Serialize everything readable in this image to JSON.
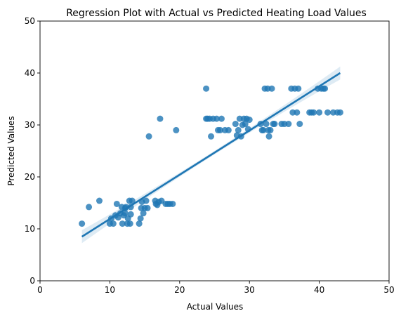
{
  "chart_data": {
    "type": "scatter",
    "title": "Regression Plot with Actual vs Predicted Heating Load Values",
    "xlabel": "Actual Values",
    "ylabel": "Predicted Values",
    "xlim": [
      0,
      50
    ],
    "ylim": [
      0,
      50
    ],
    "xticks": [
      0,
      10,
      20,
      30,
      40,
      50
    ],
    "yticks": [
      0,
      10,
      20,
      30,
      40,
      50
    ],
    "grid": false,
    "legend": "none",
    "point_color": "#1f77b4",
    "line_color": "#1f77b4",
    "points": [
      [
        6.0,
        11.0
      ],
      [
        7.0,
        14.2
      ],
      [
        8.5,
        15.4
      ],
      [
        10.0,
        11.0
      ],
      [
        10.2,
        12.0
      ],
      [
        10.5,
        11.0
      ],
      [
        10.8,
        12.6
      ],
      [
        11.0,
        14.8
      ],
      [
        11.2,
        12.2
      ],
      [
        11.5,
        13.0
      ],
      [
        11.7,
        14.2
      ],
      [
        11.8,
        11.0
      ],
      [
        12.0,
        12.6
      ],
      [
        12.2,
        13.0
      ],
      [
        12.3,
        14.2
      ],
      [
        12.5,
        11.0
      ],
      [
        12.6,
        12.0
      ],
      [
        12.8,
        15.4
      ],
      [
        13.0,
        14.2
      ],
      [
        13.2,
        15.4
      ],
      [
        13.0,
        12.8
      ],
      [
        12.2,
        14.0
      ],
      [
        12.9,
        11.0
      ],
      [
        14.2,
        11.0
      ],
      [
        14.4,
        12.0
      ],
      [
        14.5,
        14.0
      ],
      [
        14.6,
        15.2
      ],
      [
        14.8,
        13.0
      ],
      [
        15.0,
        14.0
      ],
      [
        15.2,
        15.4
      ],
      [
        15.4,
        14.0
      ],
      [
        15.6,
        27.8
      ],
      [
        16.5,
        15.4
      ],
      [
        16.6,
        14.8
      ],
      [
        16.8,
        14.6
      ],
      [
        17.0,
        15.2
      ],
      [
        17.2,
        31.2
      ],
      [
        17.4,
        15.4
      ],
      [
        18.0,
        14.8
      ],
      [
        18.3,
        14.8
      ],
      [
        18.6,
        14.8
      ],
      [
        19.0,
        14.8
      ],
      [
        19.5,
        29.0
      ],
      [
        23.8,
        37.0
      ],
      [
        23.8,
        31.2
      ],
      [
        24.0,
        31.2
      ],
      [
        24.3,
        31.2
      ],
      [
        24.5,
        27.8
      ],
      [
        24.8,
        31.2
      ],
      [
        25.3,
        31.2
      ],
      [
        25.5,
        29.0
      ],
      [
        25.8,
        29.0
      ],
      [
        26.0,
        31.2
      ],
      [
        26.5,
        29.0
      ],
      [
        27.0,
        29.0
      ],
      [
        28.0,
        30.2
      ],
      [
        28.2,
        28.0
      ],
      [
        28.4,
        29.0
      ],
      [
        28.6,
        31.2
      ],
      [
        28.8,
        27.8
      ],
      [
        29.0,
        30.0
      ],
      [
        29.2,
        31.2
      ],
      [
        29.4,
        30.2
      ],
      [
        29.6,
        31.2
      ],
      [
        29.8,
        29.2
      ],
      [
        30.0,
        31.0
      ],
      [
        31.6,
        30.2
      ],
      [
        31.8,
        29.0
      ],
      [
        32.0,
        29.0
      ],
      [
        32.2,
        37.0
      ],
      [
        32.4,
        30.2
      ],
      [
        32.6,
        37.0
      ],
      [
        32.7,
        29.0
      ],
      [
        32.8,
        27.8
      ],
      [
        33.0,
        29.0
      ],
      [
        33.2,
        37.0
      ],
      [
        33.4,
        30.2
      ],
      [
        33.6,
        30.2
      ],
      [
        34.6,
        30.2
      ],
      [
        35.0,
        30.2
      ],
      [
        35.6,
        30.2
      ],
      [
        36.0,
        37.0
      ],
      [
        36.2,
        32.4
      ],
      [
        36.5,
        37.0
      ],
      [
        36.8,
        32.4
      ],
      [
        37.0,
        37.0
      ],
      [
        37.2,
        30.2
      ],
      [
        38.6,
        32.4
      ],
      [
        38.9,
        32.4
      ],
      [
        39.2,
        32.4
      ],
      [
        39.8,
        37.0
      ],
      [
        40.0,
        32.4
      ],
      [
        40.3,
        37.0
      ],
      [
        40.6,
        37.0
      ],
      [
        40.8,
        37.0
      ],
      [
        41.2,
        32.4
      ],
      [
        42.0,
        32.4
      ],
      [
        42.6,
        32.4
      ],
      [
        43.0,
        32.4
      ]
    ],
    "regression_line": {
      "x": [
        6.0,
        43.0
      ],
      "y": [
        8.5,
        40.0
      ]
    }
  }
}
